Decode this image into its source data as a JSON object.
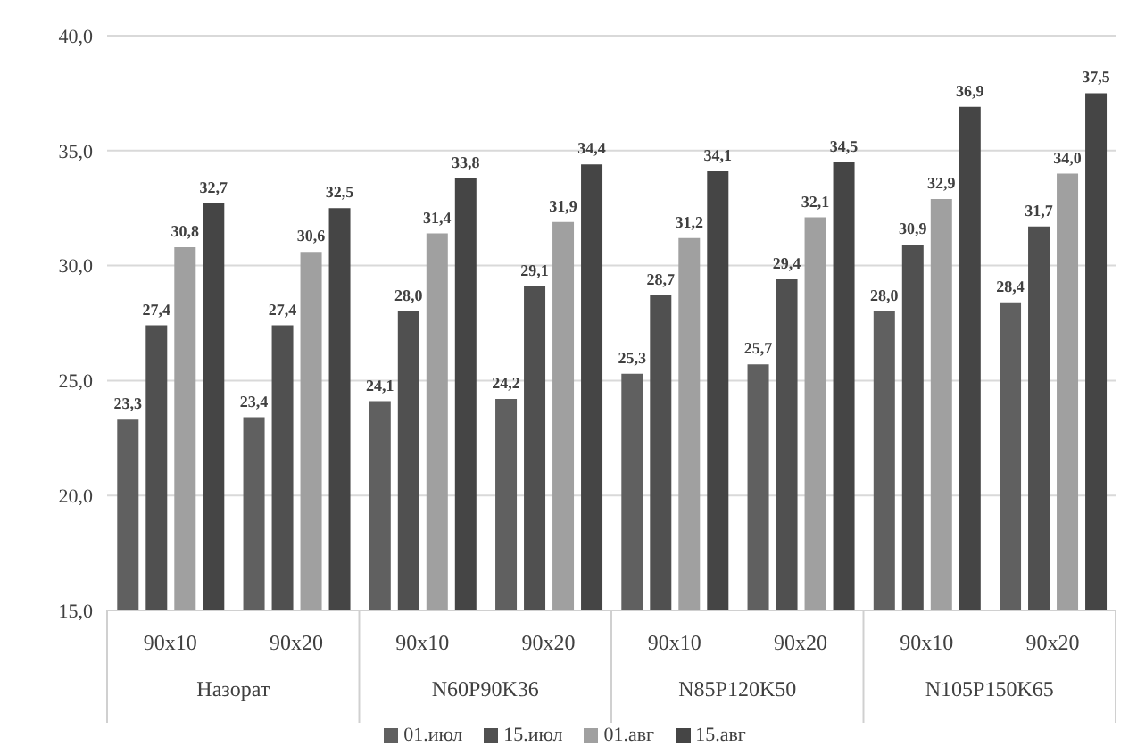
{
  "chart_data": {
    "type": "bar",
    "categories": [
      "90x10",
      "90x20",
      "90x10",
      "90x20",
      "90x10",
      "90x20",
      "90x10",
      "90x20"
    ],
    "annotations": [
      "Назорат",
      "N60P90K36",
      "N85P120K50",
      "N105P150K65"
    ],
    "series": [
      {
        "name": "01.июл",
        "color": "#606060",
        "values": [
          23.3,
          23.4,
          24.1,
          24.2,
          25.3,
          25.7,
          28.0,
          28.4
        ],
        "value_labels": [
          "23,3",
          "23,4",
          "24,1",
          "24,2",
          "25,3",
          "25,7",
          "28,0",
          "28,4"
        ]
      },
      {
        "name": "15.июл",
        "color": "#505050",
        "values": [
          27.4,
          27.4,
          28.0,
          29.1,
          28.7,
          29.4,
          30.9,
          31.7
        ],
        "value_labels": [
          "27,4",
          "27,4",
          "28,0",
          "29,1",
          "28,7",
          "29,4",
          "30,9",
          "31,7"
        ]
      },
      {
        "name": "01.авг",
        "color": "#a0a0a0",
        "values": [
          30.8,
          30.6,
          31.4,
          31.9,
          31.2,
          32.1,
          32.9,
          34.0
        ],
        "value_labels": [
          "30,8",
          "30,6",
          "31,4",
          "31,9",
          "31,2",
          "32,1",
          "32,9",
          "34,0"
        ]
      },
      {
        "name": "15.авг",
        "color": "#454545",
        "values": [
          32.7,
          32.5,
          33.8,
          34.4,
          34.1,
          34.5,
          36.9,
          37.5
        ],
        "value_labels": [
          "32,7",
          "32,5",
          "33,8",
          "34,4",
          "34,1",
          "34,5",
          "36,9",
          "37,5"
        ]
      }
    ],
    "ylim": [
      15,
      40
    ],
    "yticks": [
      {
        "value": 15,
        "label": "15,0"
      },
      {
        "value": 20,
        "label": "20,0"
      },
      {
        "value": 25,
        "label": "25,0"
      },
      {
        "value": 30,
        "label": "30,0"
      },
      {
        "value": 35,
        "label": "35,0"
      },
      {
        "value": 40,
        "label": "40,0"
      }
    ],
    "grid": "y",
    "legend": "bottom"
  }
}
